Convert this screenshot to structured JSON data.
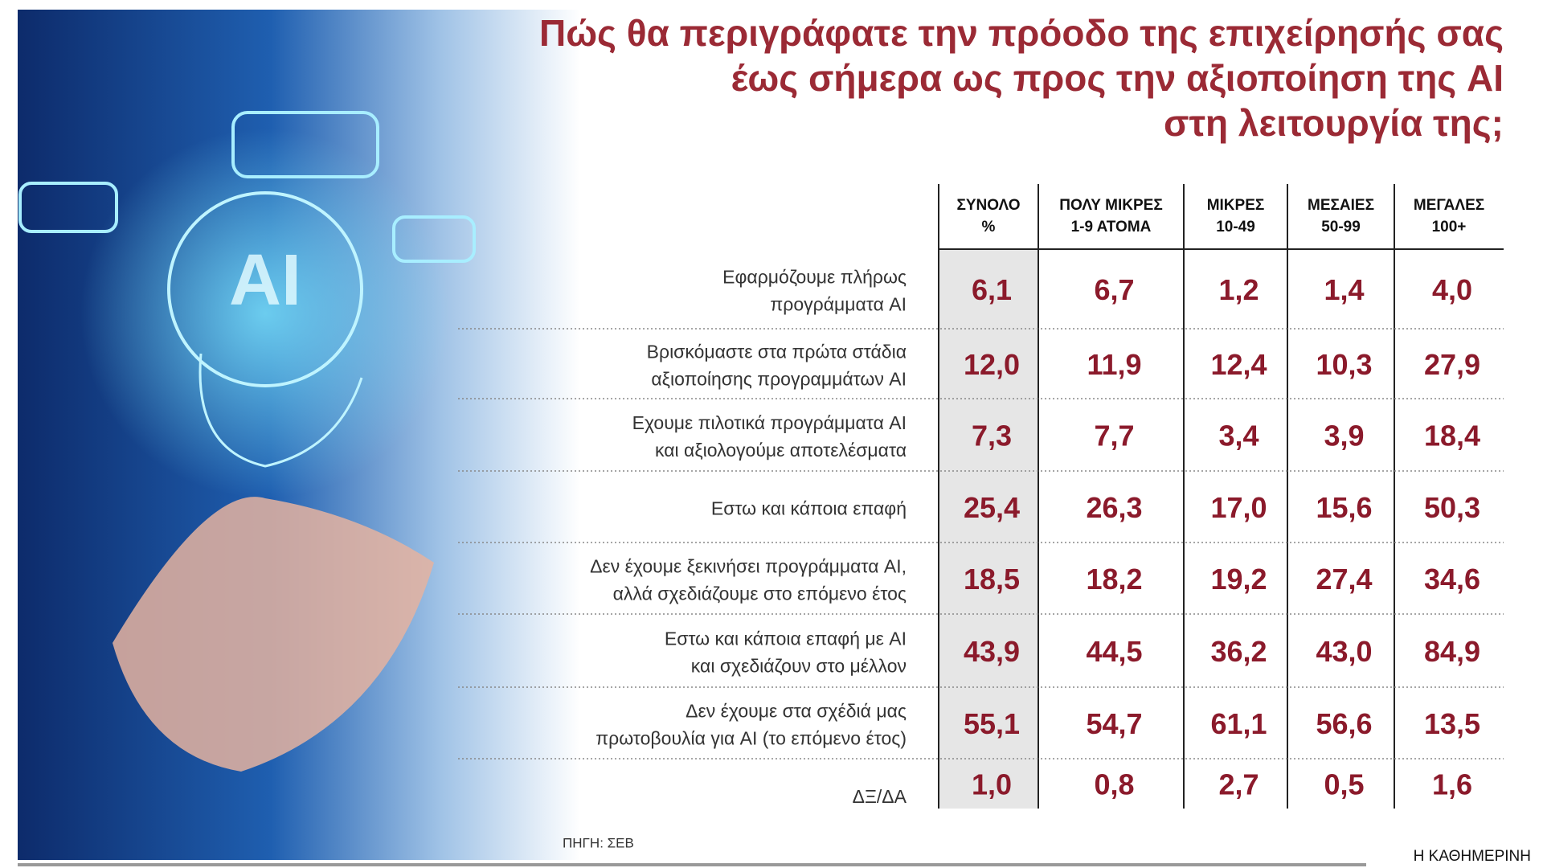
{
  "header": {
    "title_lines": [
      "Πώς θα περιγράφατε την πρόοδο της επιχείρησής σας",
      "έως σήμερα ως προς την αξιοποίηση της AI",
      "στη λειτουργία της;"
    ]
  },
  "table": {
    "columns": [
      [
        "ΣΥΝΟΛΟ",
        "%"
      ],
      [
        "ΠΟΛΥ ΜΙΚΡΕΣ",
        "1-9 ΑΤΟΜΑ"
      ],
      [
        "ΜΙΚΡΕΣ",
        "10-49"
      ],
      [
        "ΜΕΣΑΙΕΣ",
        "50-99"
      ],
      [
        "ΜΕΓΑΛΕΣ",
        "100+"
      ]
    ],
    "rows": [
      {
        "label": [
          "Εφαρμόζουμε πλήρως",
          "προγράμματα AI"
        ],
        "values": [
          "6,1",
          "6,7",
          "1,2",
          "1,4",
          "4,0"
        ]
      },
      {
        "label": [
          "Βρισκόμαστε στα πρώτα στάδια",
          "αξιοποίησης προγραμμάτων AI"
        ],
        "values": [
          "12,0",
          "11,9",
          "12,4",
          "10,3",
          "27,9"
        ]
      },
      {
        "label": [
          "Εχουμε πιλοτικά προγράμματα AI",
          "και αξιολογούμε αποτελέσματα"
        ],
        "values": [
          "7,3",
          "7,7",
          "3,4",
          "3,9",
          "18,4"
        ]
      },
      {
        "label": [
          "Εστω και κάποια επαφή"
        ],
        "values": [
          "25,4",
          "26,3",
          "17,0",
          "15,6",
          "50,3"
        ]
      },
      {
        "label": [
          "Δεν έχουμε ξεκινήσει προγράμματα AI,",
          "αλλά σχεδιάζουμε στο επόμενο έτος"
        ],
        "values": [
          "18,5",
          "18,2",
          "19,2",
          "27,4",
          "34,6"
        ]
      },
      {
        "label": [
          "Εστω και κάποια επαφή με AI",
          "και σχεδιάζουν στο μέλλον"
        ],
        "values": [
          "43,9",
          "44,5",
          "36,2",
          "43,0",
          "84,9"
        ]
      },
      {
        "label": [
          "Δεν έχουμε στα σχέδιά μας",
          "πρωτοβουλία για AI (το επόμενο έτος)"
        ],
        "values": [
          "55,1",
          "54,7",
          "61,1",
          "56,6",
          "13,5"
        ]
      },
      {
        "label": [
          "ΔΞ/ΔΑ"
        ],
        "values": [
          "1,0",
          "0,8",
          "2,7",
          "0,5",
          "1,6"
        ]
      }
    ]
  },
  "footer": {
    "source": "ΠΗΓΗ: ΣΕΒ",
    "brand": "Η ΚΑΘΗΜΕΡΙΝΗ"
  }
}
